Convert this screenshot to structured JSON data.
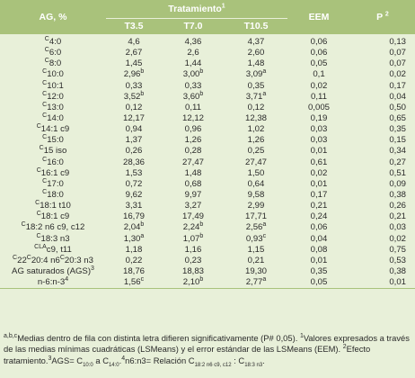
{
  "header": {
    "col_ag": "AG, %",
    "tratamiento": "Tratamiento",
    "tratamiento_sup": "1",
    "t35": "T3.5",
    "t70": "T7.0",
    "t105": "T10.5",
    "eem": "EEM",
    "p": "P",
    "p_sup": "2"
  },
  "rows": [
    {
      "pre": "C",
      "label": "4:0",
      "t35": "4,6",
      "t70": "4,36",
      "t105": "4,37",
      "eem": "0,06",
      "p": "0,13"
    },
    {
      "pre": "C",
      "label": "6:0",
      "t35": "2,67",
      "t70": "2,6",
      "t105": "2,60",
      "eem": "0,06",
      "p": "0,07"
    },
    {
      "pre": "C",
      "label": "8:0",
      "t35": "1,45",
      "t70": "1,44",
      "t105": "1,48",
      "eem": "0,05",
      "p": "0,07"
    },
    {
      "pre": "C",
      "label": "10:0",
      "t35": "2,96",
      "t35s": "b",
      "t70": "3,00",
      "t70s": "b",
      "t105": "3,09",
      "t105s": "a",
      "eem": "0,1",
      "p": "0,02"
    },
    {
      "pre": "C",
      "label": "10:1",
      "t35": "0,33",
      "t70": "0,33",
      "t105": "0,35",
      "eem": "0,02",
      "p": "0,17"
    },
    {
      "pre": "C",
      "label": "12:0",
      "t35": "3,52",
      "t35s": "b",
      "t70": "3,60",
      "t70s": "b",
      "t105": "3,71",
      "t105s": "a",
      "eem": "0,11",
      "p": "0,04"
    },
    {
      "pre": "C",
      "label": "13:0",
      "t35": "0,12",
      "t70": "0,11",
      "t105": "0,12",
      "eem": "0,005",
      "p": "0,50"
    },
    {
      "pre": "C",
      "label": "14:0",
      "t35": "12,17",
      "t70": "12,12",
      "t105": "12,38",
      "eem": "0,19",
      "p": "0,65"
    },
    {
      "pre": "C",
      "label": "14:1 c9",
      "t35": "0,94",
      "t70": "0,96",
      "t105": "1,02",
      "eem": "0,03",
      "p": "0,35"
    },
    {
      "pre": "C",
      "label": "15:0",
      "t35": "1,37",
      "t70": "1,26",
      "t105": "1,26",
      "eem": "0,03",
      "p": "0,15"
    },
    {
      "pre": "C",
      "label": "15 iso",
      "t35": "0,26",
      "t70": "0,28",
      "t105": "0,25",
      "eem": "0,01",
      "p": "0,34"
    },
    {
      "pre": "C",
      "label": "16:0",
      "t35": "28,36",
      "t70": "27,47",
      "t105": "27,47",
      "eem": "0,61",
      "p": "0,27"
    },
    {
      "pre": "C",
      "label": "16:1 c9",
      "t35": "1,53",
      "t70": "1,48",
      "t105": "1,50",
      "eem": "0,02",
      "p": "0,51"
    },
    {
      "pre": "C",
      "label": "17:0",
      "t35": "0,72",
      "t70": "0,68",
      "t105": "0,64",
      "eem": "0,01",
      "p": "0,09"
    },
    {
      "pre": "C",
      "label": "18:0",
      "t35": "9,62",
      "t70": "9,97",
      "t105": "9,58",
      "eem": "0,17",
      "p": "0,38"
    },
    {
      "pre": "C",
      "label": "18:1 t10",
      "t35": "3,31",
      "t70": "3,27",
      "t105": "2,99",
      "eem": "0,21",
      "p": "0,26"
    },
    {
      "pre": "C",
      "label": "18:1 c9",
      "t35": "16,79",
      "t70": "17,49",
      "t105": "17,71",
      "eem": "0,24",
      "p": "0,21"
    },
    {
      "pre": "C",
      "label": "18:2 n6 c9, c12",
      "t35": "2,04",
      "t35s": "b",
      "t70": "2,24",
      "t70s": "b",
      "t105": "2,56",
      "t105s": "a",
      "eem": "0,06",
      "p": "0,03"
    },
    {
      "pre": "C",
      "label": "18:3 n3",
      "t35": "1,30",
      "t35s": "a",
      "t70": "1,07",
      "t70s": "b",
      "t105": "0,93",
      "t105s": "c",
      "eem": "0,04",
      "p": "0,02"
    },
    {
      "pre": "CLA",
      "label": "c9, t11",
      "t35": "1,18",
      "t70": "1,16",
      "t105": "1,15",
      "eem": "0,08",
      "p": "0,75"
    },
    {
      "pre": "C",
      "label": "22",
      "mid": "C",
      "label2": "20:4 n6",
      "mid2": "C",
      "label3": "20:3 n3",
      "t35": "0,22",
      "t70": "0,23",
      "t105": "0,21",
      "eem": "0,01",
      "p": "0,53"
    },
    {
      "label": "AG saturados (AGS)",
      "sup": "3",
      "t35": "18,76",
      "t70": "18,83",
      "t105": "19,30",
      "eem": "0,35",
      "p": "0,38"
    },
    {
      "label": "n-6:n-3",
      "sup": "4",
      "t35": "1,56",
      "t35s": "c",
      "t70": "2,10",
      "t70s": "b",
      "t105": "2,77",
      "t105s": "a",
      "eem": "0,05",
      "p": "0,01"
    }
  ],
  "footnote": {
    "abc": "a,b,c",
    "text1": "Medias dentro de fila con distinta letra difieren significativamente (P# 0,05). ",
    "s1": "1",
    "text2": "Valores expresados a través de las medias mínimas cuadráticas (LSMeans) y el error estándar de las LSMeans (EEM). ",
    "s2": "2",
    "text3": "Efecto tratamiento.",
    "s3": "3",
    "text4": "AGS= C",
    "sub1": "10:0",
    "text5": " a C",
    "sub2": "14:0",
    "text6": ".",
    "s4": "4",
    "text7": "n6:n3= Relación C",
    "sub3": "18:2 n6 c9, c12",
    "text8": " : C",
    "sub4": "18:3 n3",
    "text9": "."
  }
}
